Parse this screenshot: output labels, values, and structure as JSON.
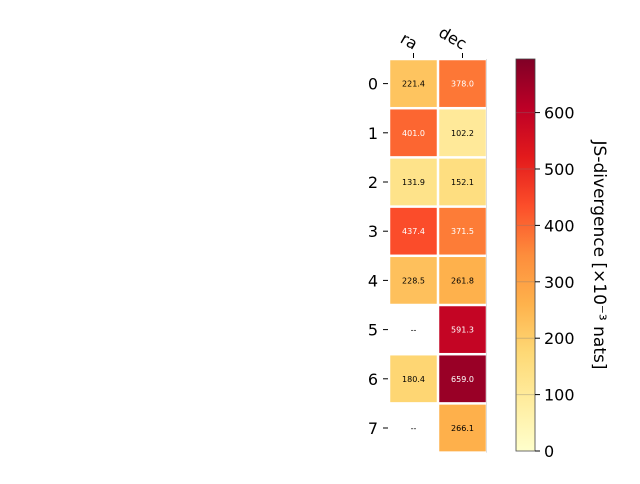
{
  "chart_data": {
    "type": "heatmap",
    "columns": [
      "ra",
      "dec"
    ],
    "rows": [
      "0",
      "1",
      "2",
      "3",
      "4",
      "5",
      "6",
      "7"
    ],
    "values": [
      [
        221.4,
        378.0
      ],
      [
        401.0,
        102.2
      ],
      [
        131.9,
        152.1
      ],
      [
        437.4,
        371.5
      ],
      [
        228.5,
        261.8
      ],
      [
        null,
        591.3
      ],
      [
        180.4,
        659.0
      ],
      [
        null,
        266.1
      ]
    ],
    "cell_labels": [
      [
        "221.4",
        "378.0"
      ],
      [
        "401.0",
        "102.2"
      ],
      [
        "131.9",
        "152.1"
      ],
      [
        "437.4",
        "371.5"
      ],
      [
        "228.5",
        "261.8"
      ],
      [
        "--",
        "591.3"
      ],
      [
        "180.4",
        "659.0"
      ],
      [
        "--",
        "266.1"
      ]
    ],
    "colormap": "YlOrRd",
    "colorbar": {
      "label": "JS-divergence [×10⁻³ nats]",
      "range": [
        0,
        695
      ],
      "ticks": [
        0,
        100,
        200,
        300,
        400,
        500,
        600
      ],
      "tick_labels": [
        "0",
        "100",
        "200",
        "300",
        "400",
        "500",
        "600"
      ]
    },
    "missing_label": "--"
  }
}
